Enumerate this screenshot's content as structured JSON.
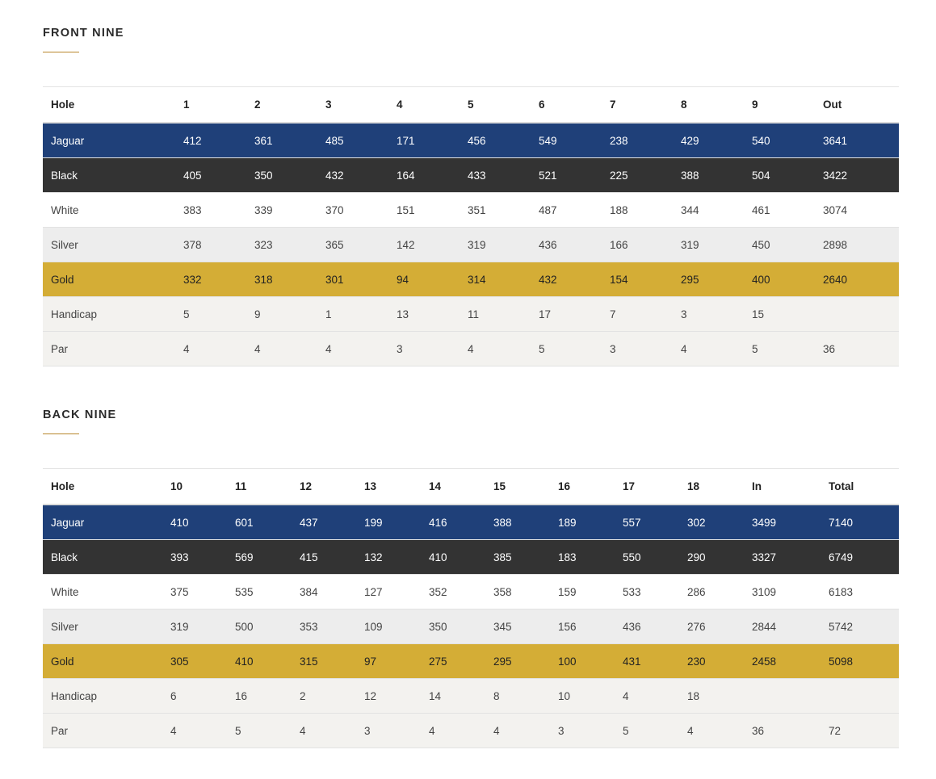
{
  "front": {
    "title": "FRONT NINE",
    "headers": [
      "Hole",
      "1",
      "2",
      "3",
      "4",
      "5",
      "6",
      "7",
      "8",
      "9",
      "Out"
    ],
    "rows": [
      {
        "key": "jaguar",
        "cells": [
          "Jaguar",
          "412",
          "361",
          "485",
          "171",
          "456",
          "549",
          "238",
          "429",
          "540",
          "3641"
        ]
      },
      {
        "key": "black",
        "cells": [
          "Black",
          "405",
          "350",
          "432",
          "164",
          "433",
          "521",
          "225",
          "388",
          "504",
          "3422"
        ]
      },
      {
        "key": "white",
        "cells": [
          "White",
          "383",
          "339",
          "370",
          "151",
          "351",
          "487",
          "188",
          "344",
          "461",
          "3074"
        ]
      },
      {
        "key": "silver",
        "cells": [
          "Silver",
          "378",
          "323",
          "365",
          "142",
          "319",
          "436",
          "166",
          "319",
          "450",
          "2898"
        ]
      },
      {
        "key": "gold",
        "cells": [
          "Gold",
          "332",
          "318",
          "301",
          "94",
          "314",
          "432",
          "154",
          "295",
          "400",
          "2640"
        ]
      },
      {
        "key": "handicap",
        "cells": [
          "Handicap",
          "5",
          "9",
          "1",
          "13",
          "11",
          "17",
          "7",
          "3",
          "15",
          ""
        ]
      },
      {
        "key": "par",
        "cells": [
          "Par",
          "4",
          "4",
          "4",
          "3",
          "4",
          "5",
          "3",
          "4",
          "5",
          "36"
        ]
      }
    ]
  },
  "back": {
    "title": "BACK NINE",
    "headers": [
      "Hole",
      "10",
      "11",
      "12",
      "13",
      "14",
      "15",
      "16",
      "17",
      "18",
      "In",
      "Total"
    ],
    "rows": [
      {
        "key": "jaguar",
        "cells": [
          "Jaguar",
          "410",
          "601",
          "437",
          "199",
          "416",
          "388",
          "189",
          "557",
          "302",
          "3499",
          "7140"
        ]
      },
      {
        "key": "black",
        "cells": [
          "Black",
          "393",
          "569",
          "415",
          "132",
          "410",
          "385",
          "183",
          "550",
          "290",
          "3327",
          "6749"
        ]
      },
      {
        "key": "white",
        "cells": [
          "White",
          "375",
          "535",
          "384",
          "127",
          "352",
          "358",
          "159",
          "533",
          "286",
          "3109",
          "6183"
        ]
      },
      {
        "key": "silver",
        "cells": [
          "Silver",
          "319",
          "500",
          "353",
          "109",
          "350",
          "345",
          "156",
          "436",
          "276",
          "2844",
          "5742"
        ]
      },
      {
        "key": "gold",
        "cells": [
          "Gold",
          "305",
          "410",
          "315",
          "97",
          "275",
          "295",
          "100",
          "431",
          "230",
          "2458",
          "5098"
        ]
      },
      {
        "key": "handicap",
        "cells": [
          "Handicap",
          "6",
          "16",
          "2",
          "12",
          "14",
          "8",
          "10",
          "4",
          "18",
          "",
          ""
        ]
      },
      {
        "key": "par",
        "cells": [
          "Par",
          "4",
          "5",
          "4",
          "3",
          "4",
          "4",
          "3",
          "5",
          "4",
          "36",
          "72"
        ]
      }
    ]
  },
  "colors": {
    "jaguar": "#1f4079",
    "black": "#333333",
    "silver": "#ededed",
    "gold": "#d4ad36",
    "accent": "#b8862b"
  }
}
